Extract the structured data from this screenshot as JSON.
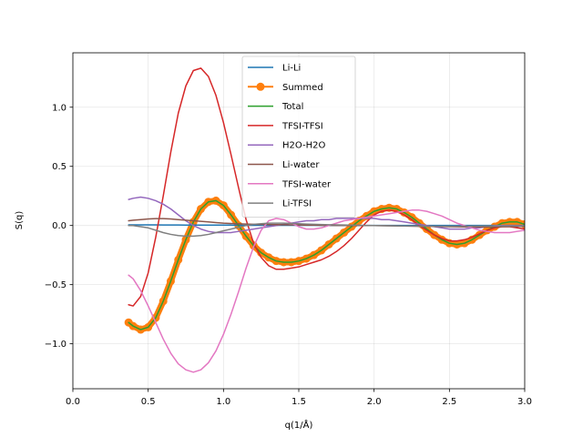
{
  "chart_data": {
    "type": "line",
    "title": "",
    "xlabel": "q(1/Å)",
    "ylabel": "S(q)",
    "xlim": [
      0.0,
      3.0
    ],
    "ylim": [
      -1.38,
      1.46
    ],
    "grid": true,
    "legend_position": "top-center",
    "x_ticks": [
      0.0,
      0.5,
      1.0,
      1.5,
      2.0,
      2.5,
      3.0
    ],
    "x_tick_labels": [
      "0.0",
      "0.5",
      "1.0",
      "1.5",
      "2.0",
      "2.5",
      "3.0"
    ],
    "y_ticks": [
      -1.0,
      -0.5,
      0.0,
      0.5,
      1.0
    ],
    "y_tick_labels": [
      "−1.0",
      "−0.5",
      "0.0",
      "0.5",
      "1.0"
    ],
    "x": [
      0.37,
      0.4,
      0.45,
      0.5,
      0.55,
      0.6,
      0.65,
      0.7,
      0.75,
      0.8,
      0.85,
      0.9,
      0.95,
      1.0,
      1.05,
      1.1,
      1.15,
      1.2,
      1.25,
      1.3,
      1.35,
      1.4,
      1.45,
      1.5,
      1.55,
      1.6,
      1.65,
      1.7,
      1.75,
      1.8,
      1.85,
      1.9,
      1.95,
      2.0,
      2.05,
      2.1,
      2.15,
      2.2,
      2.25,
      2.3,
      2.35,
      2.4,
      2.45,
      2.5,
      2.55,
      2.6,
      2.65,
      2.7,
      2.75,
      2.8,
      2.85,
      2.9,
      2.95,
      3.0
    ],
    "series": [
      {
        "name": "Li-Li",
        "color": "#1f77b4",
        "width": 1.5,
        "marker": false,
        "values": [
          0.005,
          0.005,
          0.005,
          0.005,
          0.005,
          0.004,
          0.004,
          0.004,
          0.003,
          0.003,
          0.003,
          0.003,
          0.003,
          0.003,
          0.003,
          0.002,
          0.002,
          0.002,
          0.002,
          0.002,
          0.002,
          0.002,
          0.002,
          0.002,
          0.002,
          0.002,
          0.001,
          0.001,
          0.001,
          0.001,
          0.001,
          0.001,
          0.001,
          0.001,
          0.001,
          0.001,
          0.001,
          0.001,
          0.001,
          0.001,
          0.001,
          0.001,
          0.001,
          0.001,
          0.001,
          0.001,
          0.001,
          0.001,
          0.001,
          0.001,
          0.001,
          0.001,
          0.001,
          0.001
        ]
      },
      {
        "name": "Summed",
        "color": "#ff7f0e",
        "width": 7,
        "marker": true,
        "values": [
          -0.82,
          -0.85,
          -0.88,
          -0.86,
          -0.78,
          -0.64,
          -0.47,
          -0.29,
          -0.12,
          0.03,
          0.14,
          0.2,
          0.21,
          0.17,
          0.09,
          0.0,
          -0.09,
          -0.17,
          -0.23,
          -0.27,
          -0.3,
          -0.31,
          -0.31,
          -0.3,
          -0.28,
          -0.25,
          -0.21,
          -0.16,
          -0.11,
          -0.06,
          -0.01,
          0.04,
          0.08,
          0.12,
          0.14,
          0.15,
          0.14,
          0.11,
          0.07,
          0.02,
          -0.03,
          -0.08,
          -0.12,
          -0.15,
          -0.16,
          -0.15,
          -0.12,
          -0.08,
          -0.04,
          -0.01,
          0.02,
          0.03,
          0.03,
          0.01
        ]
      },
      {
        "name": "Total",
        "color": "#2ca02c",
        "width": 1.5,
        "marker": false,
        "values": [
          -0.82,
          -0.85,
          -0.88,
          -0.86,
          -0.78,
          -0.64,
          -0.47,
          -0.29,
          -0.12,
          0.03,
          0.14,
          0.2,
          0.21,
          0.17,
          0.09,
          0.0,
          -0.09,
          -0.17,
          -0.23,
          -0.27,
          -0.3,
          -0.31,
          -0.31,
          -0.3,
          -0.28,
          -0.25,
          -0.21,
          -0.16,
          -0.11,
          -0.06,
          -0.01,
          0.04,
          0.08,
          0.12,
          0.14,
          0.15,
          0.14,
          0.11,
          0.07,
          0.02,
          -0.03,
          -0.08,
          -0.12,
          -0.15,
          -0.16,
          -0.15,
          -0.12,
          -0.08,
          -0.04,
          -0.01,
          0.02,
          0.03,
          0.03,
          0.01
        ]
      },
      {
        "name": "TFSI-TFSI",
        "color": "#d62728",
        "width": 1.5,
        "marker": false,
        "values": [
          -0.67,
          -0.68,
          -0.6,
          -0.4,
          -0.1,
          0.25,
          0.62,
          0.95,
          1.18,
          1.31,
          1.33,
          1.26,
          1.1,
          0.87,
          0.6,
          0.32,
          0.05,
          -0.15,
          -0.27,
          -0.34,
          -0.37,
          -0.37,
          -0.36,
          -0.35,
          -0.33,
          -0.31,
          -0.29,
          -0.26,
          -0.22,
          -0.17,
          -0.11,
          -0.04,
          0.03,
          0.09,
          0.12,
          0.13,
          0.12,
          0.09,
          0.05,
          0.0,
          -0.04,
          -0.08,
          -0.11,
          -0.13,
          -0.13,
          -0.12,
          -0.1,
          -0.07,
          -0.04,
          -0.02,
          -0.01,
          -0.01,
          -0.02,
          -0.03
        ]
      },
      {
        "name": "H2O-H2O",
        "color": "#9467bd",
        "width": 1.5,
        "marker": false,
        "values": [
          0.22,
          0.23,
          0.24,
          0.23,
          0.21,
          0.18,
          0.14,
          0.09,
          0.04,
          0.0,
          -0.03,
          -0.05,
          -0.06,
          -0.06,
          -0.06,
          -0.05,
          -0.04,
          -0.03,
          -0.02,
          -0.01,
          0.0,
          0.01,
          0.02,
          0.03,
          0.04,
          0.04,
          0.05,
          0.05,
          0.06,
          0.06,
          0.06,
          0.06,
          0.06,
          0.06,
          0.05,
          0.05,
          0.04,
          0.03,
          0.02,
          0.01,
          0.0,
          -0.01,
          -0.02,
          -0.03,
          -0.03,
          -0.03,
          -0.02,
          -0.02,
          -0.01,
          0.0,
          0.0,
          0.0,
          0.0,
          0.0
        ]
      },
      {
        "name": "Li-water",
        "color": "#8c564b",
        "width": 1.5,
        "marker": false,
        "values": [
          0.04,
          0.045,
          0.05,
          0.055,
          0.058,
          0.058,
          0.055,
          0.05,
          0.045,
          0.04,
          0.035,
          0.03,
          0.025,
          0.02,
          0.017,
          0.014,
          0.012,
          0.01,
          0.009,
          0.008,
          0.007,
          0.006,
          0.005,
          0.004,
          0.003,
          0.003,
          0.002,
          0.002,
          0.001,
          0.001,
          0.0,
          0.0,
          0.0,
          0.0,
          -0.001,
          -0.002,
          -0.003,
          -0.004,
          -0.005,
          -0.006,
          -0.007,
          -0.008,
          -0.009,
          -0.01,
          -0.011,
          -0.012,
          -0.012,
          -0.012,
          -0.012,
          -0.011,
          -0.01,
          -0.009,
          -0.008,
          -0.007
        ]
      },
      {
        "name": "TFSI-water",
        "color": "#e377c2",
        "width": 1.5,
        "marker": false,
        "values": [
          -0.42,
          -0.45,
          -0.55,
          -0.68,
          -0.82,
          -0.96,
          -1.08,
          -1.17,
          -1.22,
          -1.24,
          -1.22,
          -1.16,
          -1.06,
          -0.92,
          -0.75,
          -0.56,
          -0.36,
          -0.18,
          -0.04,
          0.04,
          0.06,
          0.05,
          0.02,
          -0.01,
          -0.03,
          -0.03,
          -0.02,
          0.0,
          0.02,
          0.04,
          0.05,
          0.06,
          0.07,
          0.08,
          0.09,
          0.1,
          0.11,
          0.12,
          0.13,
          0.13,
          0.12,
          0.1,
          0.08,
          0.05,
          0.02,
          0.0,
          -0.02,
          -0.04,
          -0.05,
          -0.06,
          -0.06,
          -0.06,
          -0.05,
          -0.04
        ]
      },
      {
        "name": "Li-TFSI",
        "color": "#7f7f7f",
        "width": 1.5,
        "marker": false,
        "values": [
          0.0,
          0.0,
          -0.01,
          -0.02,
          -0.04,
          -0.06,
          -0.075,
          -0.085,
          -0.09,
          -0.09,
          -0.085,
          -0.075,
          -0.06,
          -0.045,
          -0.03,
          -0.015,
          0.0,
          0.01,
          0.015,
          0.02,
          0.02,
          0.02,
          0.018,
          0.015,
          0.012,
          0.01,
          0.008,
          0.006,
          0.005,
          0.004,
          0.003,
          0.002,
          0.001,
          0.0,
          -0.001,
          -0.002,
          -0.003,
          -0.004,
          -0.005,
          -0.006,
          -0.006,
          -0.006,
          -0.006,
          -0.006,
          -0.006,
          -0.006,
          -0.005,
          -0.005,
          -0.004,
          -0.004,
          -0.004,
          -0.003,
          -0.003,
          -0.003
        ]
      }
    ]
  }
}
